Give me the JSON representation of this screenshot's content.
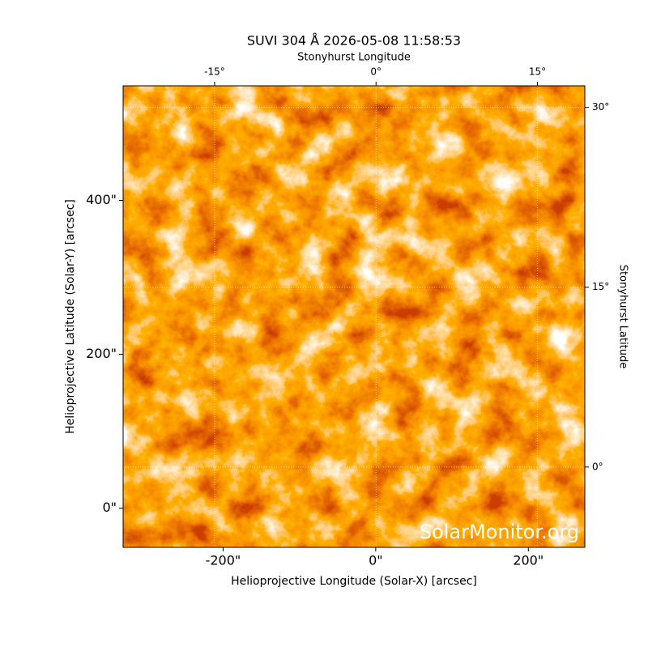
{
  "chart_data": {
    "type": "image",
    "title": "SUVI 304 Å 2026-05-08 11:58:53",
    "xlabel": "Helioprojective Longitude (Solar-X) [arcsec]",
    "ylabel": "Helioprojective Latitude (Solar-Y) [arcsec]",
    "x2label": "Stonyhurst Longitude",
    "y2label": "Stonyhurst Latitude",
    "xlim": [
      -331,
      274
    ],
    "ylim": [
      -51,
      549
    ],
    "xticks": [
      {
        "value": -200,
        "label": "-200\""
      },
      {
        "value": 0,
        "label": "0\""
      },
      {
        "value": 200,
        "label": "200\""
      }
    ],
    "yticks": [
      {
        "value": 0,
        "label": "0\""
      },
      {
        "value": 200,
        "label": "200\""
      },
      {
        "value": 400,
        "label": "400\""
      }
    ],
    "x2lim": [
      -23.5,
      19.4
    ],
    "x2ticks": [
      {
        "value": -15,
        "label": "-15°"
      },
      {
        "value": 0,
        "label": "0°"
      },
      {
        "value": 15,
        "label": "15°"
      }
    ],
    "y2lim": [
      -6.7,
      31.8
    ],
    "y2ticks": [
      {
        "value": 0,
        "label": "0°"
      },
      {
        "value": 15,
        "label": "15°"
      },
      {
        "value": 30,
        "label": "30°"
      }
    ],
    "grid": true,
    "watermark": "SolarMonitor.org"
  }
}
